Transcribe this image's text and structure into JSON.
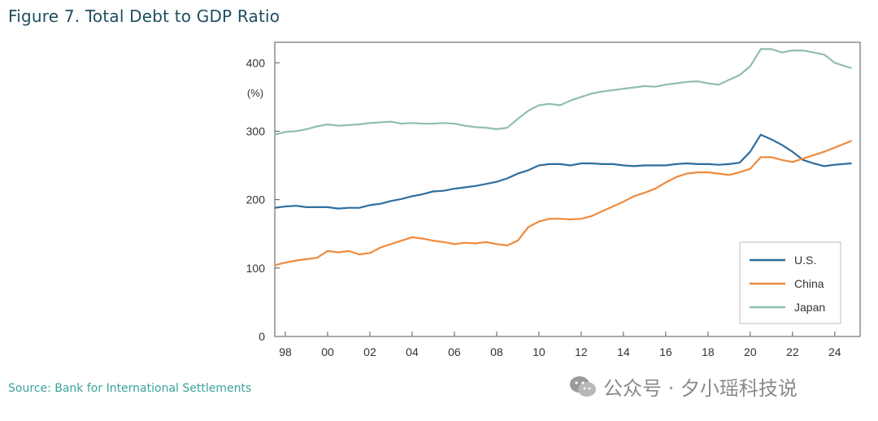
{
  "figure_title": "Figure 7. Total Debt to GDP Ratio",
  "source": "Source: Bank for International Settlements",
  "watermark": {
    "text": "公众号 · 夕小瑶科技说",
    "icon": "wechat-icon"
  },
  "colors": {
    "us": "#2e6e9e",
    "china": "#f08a3c",
    "japan": "#8fbfaa",
    "axis": "#333333",
    "frame": "#555555"
  },
  "chart_data": {
    "type": "line",
    "title": "",
    "xlabel": "",
    "ylabel": "(%)",
    "xlim": [
      1997.5,
      2025.2
    ],
    "ylim": [
      0,
      430
    ],
    "x_ticks": [
      {
        "value": 1998,
        "label": "98"
      },
      {
        "value": 2000,
        "label": "00"
      },
      {
        "value": 2002,
        "label": "02"
      },
      {
        "value": 2004,
        "label": "04"
      },
      {
        "value": 2006,
        "label": "06"
      },
      {
        "value": 2008,
        "label": "08"
      },
      {
        "value": 2010,
        "label": "10"
      },
      {
        "value": 2012,
        "label": "12"
      },
      {
        "value": 2014,
        "label": "14"
      },
      {
        "value": 2016,
        "label": "16"
      },
      {
        "value": 2018,
        "label": "18"
      },
      {
        "value": 2020,
        "label": "20"
      },
      {
        "value": 2022,
        "label": "22"
      },
      {
        "value": 2024,
        "label": "24"
      }
    ],
    "y_ticks": [
      0,
      100,
      200,
      300,
      400
    ],
    "grid": false,
    "legend_position": "bottom-right",
    "series": [
      {
        "name": "U.S.",
        "color": "#2e6e9e",
        "x": [
          1997.5,
          1998,
          1998.5,
          1999,
          1999.5,
          2000,
          2000.5,
          2001,
          2001.5,
          2002,
          2002.5,
          2003,
          2003.5,
          2004,
          2004.5,
          2005,
          2005.5,
          2006,
          2006.5,
          2007,
          2007.5,
          2008,
          2008.5,
          2009,
          2009.5,
          2010,
          2010.5,
          2011,
          2011.5,
          2012,
          2012.5,
          2013,
          2013.5,
          2014,
          2014.5,
          2015,
          2015.5,
          2016,
          2016.5,
          2017,
          2017.5,
          2018,
          2018.5,
          2019,
          2019.5,
          2020,
          2020.5,
          2021,
          2021.5,
          2022,
          2022.5,
          2023,
          2023.5,
          2024,
          2024.8
        ],
        "y": [
          188,
          190,
          191,
          189,
          189,
          189,
          187,
          188,
          188,
          192,
          194,
          198,
          201,
          205,
          208,
          212,
          213,
          216,
          218,
          220,
          223,
          226,
          231,
          238,
          243,
          250,
          252,
          252,
          250,
          253,
          253,
          252,
          252,
          250,
          249,
          250,
          250,
          250,
          252,
          253,
          252,
          252,
          251,
          252,
          254,
          270,
          295,
          288,
          280,
          270,
          258,
          253,
          249,
          251,
          253
        ]
      },
      {
        "name": "China",
        "color": "#f08a3c",
        "x": [
          1997.5,
          1998,
          1998.5,
          1999,
          1999.5,
          2000,
          2000.5,
          2001,
          2001.5,
          2002,
          2002.5,
          2003,
          2003.5,
          2004,
          2004.5,
          2005,
          2005.5,
          2006,
          2006.5,
          2007,
          2007.5,
          2008,
          2008.5,
          2009,
          2009.5,
          2010,
          2010.5,
          2011,
          2011.5,
          2012,
          2012.5,
          2013,
          2013.5,
          2014,
          2014.5,
          2015,
          2015.5,
          2016,
          2016.5,
          2017,
          2017.5,
          2018,
          2018.5,
          2019,
          2019.5,
          2020,
          2020.5,
          2021,
          2021.5,
          2022,
          2022.5,
          2023,
          2023.5,
          2024,
          2024.8
        ],
        "y": [
          104,
          108,
          111,
          113,
          115,
          125,
          123,
          125,
          120,
          122,
          130,
          135,
          140,
          145,
          143,
          140,
          138,
          135,
          137,
          136,
          138,
          135,
          133,
          140,
          160,
          168,
          172,
          172,
          171,
          172,
          176,
          183,
          190,
          197,
          205,
          210,
          216,
          225,
          233,
          238,
          240,
          240,
          238,
          236,
          240,
          245,
          262,
          262,
          258,
          255,
          260,
          265,
          270,
          276,
          286
        ]
      },
      {
        "name": "Japan",
        "color": "#8fbfaa",
        "x": [
          1997.5,
          1998,
          1998.5,
          1999,
          1999.5,
          2000,
          2000.5,
          2001,
          2001.5,
          2002,
          2002.5,
          2003,
          2003.5,
          2004,
          2004.5,
          2005,
          2005.5,
          2006,
          2006.5,
          2007,
          2007.5,
          2008,
          2008.5,
          2009,
          2009.5,
          2010,
          2010.5,
          2011,
          2011.5,
          2012,
          2012.5,
          2013,
          2013.5,
          2014,
          2014.5,
          2015,
          2015.5,
          2016,
          2016.5,
          2017,
          2017.5,
          2018,
          2018.5,
          2019,
          2019.5,
          2020,
          2020.5,
          2021,
          2021.5,
          2022,
          2022.5,
          2023,
          2023.5,
          2024,
          2024.8
        ],
        "y": [
          295,
          299,
          300,
          303,
          307,
          310,
          308,
          309,
          310,
          312,
          313,
          314,
          311,
          312,
          311,
          311,
          312,
          311,
          308,
          306,
          305,
          303,
          305,
          318,
          330,
          338,
          340,
          338,
          345,
          350,
          355,
          358,
          360,
          362,
          364,
          366,
          365,
          368,
          370,
          372,
          373,
          370,
          368,
          375,
          382,
          395,
          420,
          420,
          415,
          418,
          418,
          415,
          412,
          400,
          392
        ]
      }
    ]
  }
}
